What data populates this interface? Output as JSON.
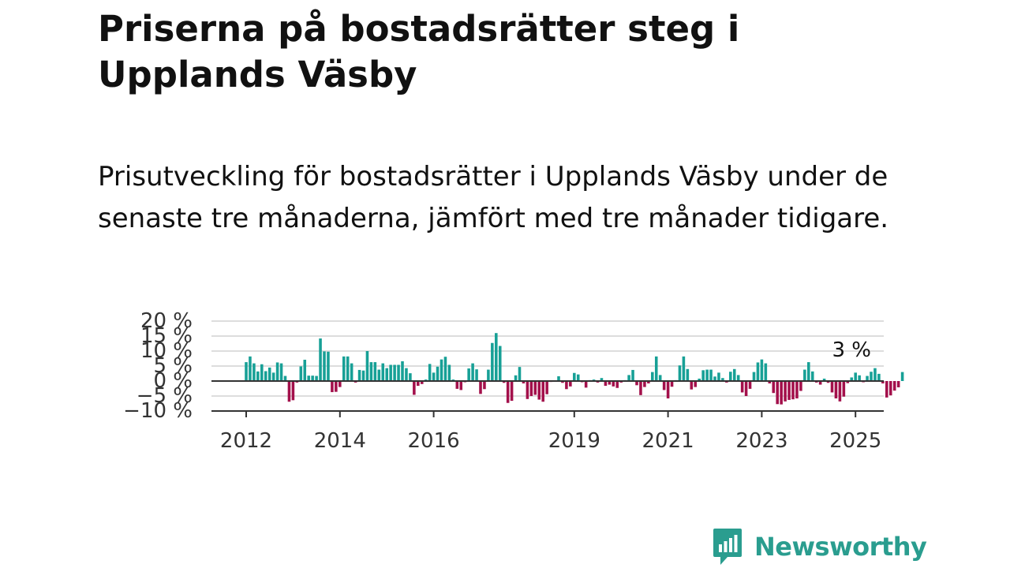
{
  "title": "Priserna på bostadsrätter steg i Upplands Väsby",
  "subtitle": "Prisutveckling för bostadsrätter i Upplands Väsby under de senaste tre månaderna, jämfört med tre månader tidigare.",
  "brand": {
    "name": "Newsworthy",
    "color": "#2a9d8f"
  },
  "chart_data": {
    "type": "bar",
    "ylim": [
      -10,
      20
    ],
    "y_ticks": [
      -10,
      -5,
      0,
      5,
      10,
      15,
      20
    ],
    "y_tick_labels": [
      "−10 %",
      "−5 %",
      "0 %",
      "5 %",
      "10 %",
      "15 %",
      "20 %"
    ],
    "x_tick_labels": [
      "2012",
      "2014",
      "2016",
      "2019",
      "2021",
      "2023",
      "2025"
    ],
    "x_tick_indices": [
      0,
      24,
      48,
      84,
      108,
      132,
      156
    ],
    "grid": true,
    "colors": {
      "positive": "#17a096",
      "negative": "#a3104b",
      "grid": "#dddddd",
      "axis": "#333333"
    },
    "last_value_label": "3 %",
    "values": [
      6.3,
      8.2,
      5.9,
      3.2,
      5.6,
      3.3,
      4.5,
      2.8,
      6.2,
      5.9,
      1.7,
      -6.9,
      -6.4,
      -0.5,
      4.9,
      7.1,
      1.8,
      1.8,
      1.7,
      14.2,
      9.9,
      9.8,
      -3.7,
      -3.6,
      -2.0,
      8.2,
      8.2,
      5.9,
      -0.5,
      3.7,
      3.5,
      10.0,
      6.3,
      6.3,
      3.8,
      5.9,
      4.3,
      5.4,
      5.4,
      5.4,
      6.6,
      4.3,
      2.6,
      -4.6,
      -1.6,
      -1.0,
      0.5,
      5.7,
      2.8,
      4.8,
      7.2,
      8.1,
      5.4,
      0.5,
      -2.6,
      -3.0,
      -0.4,
      4.2,
      5.9,
      3.9,
      -4.3,
      -2.7,
      3.8,
      12.7,
      16.0,
      11.7,
      -0.6,
      -7.3,
      -6.6,
      1.9,
      4.7,
      -0.8,
      -6.0,
      -5.0,
      -4.6,
      -6.2,
      -6.9,
      -4.4,
      -0.3,
      -0.2,
      1.6,
      -0.6,
      -2.7,
      -1.8,
      2.7,
      2.2,
      -0.4,
      -2.2,
      0.3,
      0.5,
      -0.5,
      1.0,
      -1.6,
      -1.2,
      -1.8,
      -2.3,
      -0.5,
      0.3,
      2.0,
      3.7,
      -1.4,
      -4.7,
      -2.0,
      -0.8,
      3.0,
      8.2,
      2.0,
      -3.0,
      -5.8,
      -1.9,
      0.3,
      5.2,
      8.2,
      4.0,
      -2.8,
      -2.0,
      0.8,
      3.6,
      3.8,
      3.8,
      1.5,
      2.8,
      1.0,
      -0.5,
      3.1,
      4.0,
      2.0,
      -3.8,
      -5.0,
      -2.6,
      3.0,
      6.2,
      7.2,
      5.9,
      -0.8,
      -4.0,
      -7.7,
      -7.8,
      -6.8,
      -6.3,
      -6.1,
      -5.8,
      -3.3,
      3.8,
      6.3,
      3.2,
      -0.5,
      -1.2,
      0.8,
      -0.6,
      -3.8,
      -5.8,
      -6.8,
      -5.2,
      -0.7,
      1.2,
      2.8,
      1.9,
      -0.4,
      1.7,
      3.1,
      4.3,
      2.4,
      -0.8,
      -5.5,
      -4.8,
      -3.2,
      -2.1,
      3.0
    ]
  }
}
